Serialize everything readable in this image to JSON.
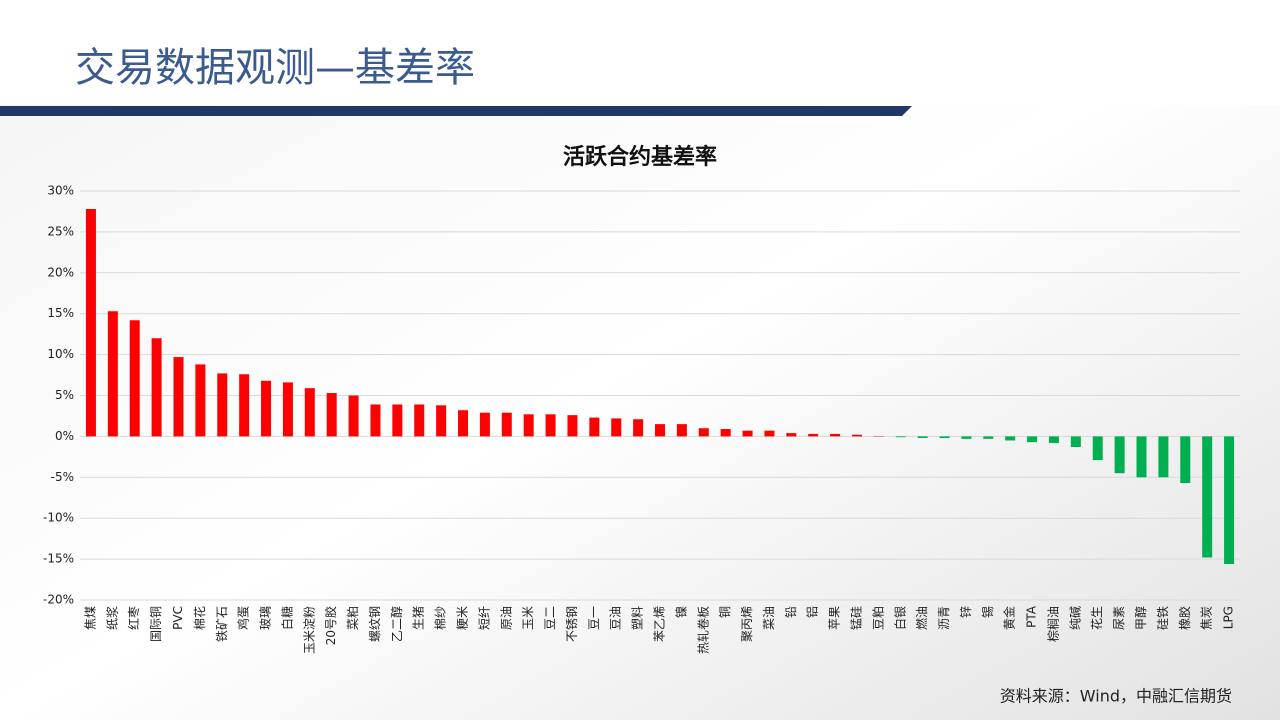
{
  "header": {
    "title": "交易数据观测—基差率"
  },
  "chart_data": {
    "type": "bar",
    "title": "活跃合约基差率",
    "categories": [
      "焦煤",
      "纸浆",
      "红枣",
      "国际铜",
      "PVC",
      "棉花",
      "铁矿石",
      "鸡蛋",
      "玻璃",
      "白糖",
      "玉米淀粉",
      "20号胶",
      "菜粕",
      "螺纹钢",
      "乙二醇",
      "生猪",
      "棉纱",
      "粳米",
      "短纤",
      "原油",
      "玉米",
      "豆二",
      "不锈钢",
      "豆一",
      "豆油",
      "塑料",
      "苯乙烯",
      "镍",
      "热轧卷板",
      "铜",
      "聚丙烯",
      "菜油",
      "铅",
      "铝",
      "苹果",
      "锰硅",
      "豆粕",
      "白银",
      "燃油",
      "沥青",
      "锌",
      "锡",
      "黄金",
      "PTA",
      "棕榈油",
      "纯碱",
      "花生",
      "尿素",
      "甲醇",
      "硅铁",
      "橡胶",
      "焦炭",
      "LPG"
    ],
    "values": [
      27.8,
      15.3,
      14.2,
      12.0,
      9.7,
      8.8,
      7.7,
      7.6,
      6.8,
      6.6,
      5.9,
      5.3,
      5.0,
      3.9,
      3.9,
      3.9,
      3.8,
      3.2,
      2.9,
      2.9,
      2.7,
      2.7,
      2.6,
      2.3,
      2.2,
      2.1,
      1.5,
      1.5,
      1.0,
      0.9,
      0.7,
      0.7,
      0.4,
      0.3,
      0.3,
      0.2,
      0.05,
      -0.1,
      -0.2,
      -0.2,
      -0.3,
      -0.3,
      -0.5,
      -0.7,
      -0.8,
      -1.3,
      -2.9,
      -4.5,
      -5.0,
      -5.0,
      -5.7,
      -14.8,
      -15.6
    ],
    "positive_color": "#ff0000",
    "negative_color": "#00b050",
    "ylim": [
      -20,
      30
    ],
    "yticks": [
      {
        "value": -20,
        "label": "-20%"
      },
      {
        "value": -15,
        "label": "-15%"
      },
      {
        "value": -10,
        "label": "-10%"
      },
      {
        "value": -5,
        "label": "-5%"
      },
      {
        "value": 0,
        "label": "0%"
      },
      {
        "value": 5,
        "label": "5%"
      },
      {
        "value": 10,
        "label": "10%"
      },
      {
        "value": 15,
        "label": "15%"
      },
      {
        "value": 20,
        "label": "20%"
      },
      {
        "value": 25,
        "label": "25%"
      },
      {
        "value": 30,
        "label": "30%"
      }
    ],
    "grid": true
  },
  "source": "资料来源：Wind，中融汇信期货"
}
